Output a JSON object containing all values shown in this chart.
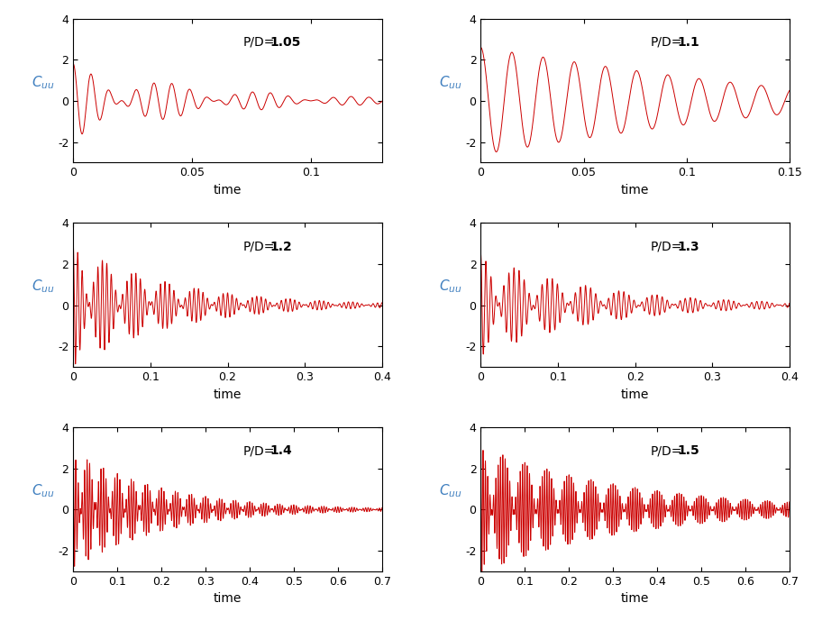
{
  "subplots": [
    {
      "label": "P/D=1.05",
      "xlim": [
        0,
        0.13
      ],
      "xticks": [
        0,
        0.05,
        0.1
      ],
      "xticklabels": [
        "0",
        "0.05",
        "0.1"
      ],
      "freq1": 120,
      "freq2": 145,
      "decay": 18,
      "amp": 1.8
    },
    {
      "label": "P/D=1.1",
      "xlim": [
        0,
        0.15
      ],
      "xticks": [
        0,
        0.05,
        0.1,
        0.15
      ],
      "xticklabels": [
        "0",
        "0.05",
        "0.1",
        "0.15"
      ],
      "freq1": 65,
      "freq2": 67,
      "decay": 6,
      "amp": 2.6
    },
    {
      "label": "P/D=1.2",
      "xlim": [
        0,
        0.4
      ],
      "xticks": [
        0,
        0.1,
        0.2,
        0.3,
        0.4
      ],
      "xticklabels": [
        "0",
        "0.1",
        "0.2",
        "0.3",
        "0.4"
      ],
      "freq1": 160,
      "freq2": 185,
      "decay": 8,
      "amp": 3.0
    },
    {
      "label": "P/D=1.3",
      "xlim": [
        0,
        0.4
      ],
      "xticks": [
        0,
        0.1,
        0.2,
        0.3,
        0.4
      ],
      "xticklabels": [
        "0",
        "0.1",
        "0.2",
        "0.3",
        "0.4"
      ],
      "freq1": 140,
      "freq2": 162,
      "decay": 7,
      "amp": 2.5
    },
    {
      "label": "P/D=1.4",
      "xlim": [
        0,
        0.7
      ],
      "xticks": [
        0,
        0.1,
        0.2,
        0.3,
        0.4,
        0.5,
        0.6,
        0.7
      ],
      "xticklabels": [
        "0",
        "0.1",
        "0.2",
        "0.3",
        "0.4",
        "0.5",
        "0.6",
        "0.7"
      ],
      "freq1": 160,
      "freq2": 190,
      "decay": 5,
      "amp": 2.9
    },
    {
      "label": "P/D=1.5",
      "xlim": [
        0,
        0.7
      ],
      "xticks": [
        0,
        0.1,
        0.2,
        0.3,
        0.4,
        0.5,
        0.6,
        0.7
      ],
      "xticklabels": [
        "0",
        "0.1",
        "0.2",
        "0.3",
        "0.4",
        "0.5",
        "0.6",
        "0.7"
      ],
      "freq1": 180,
      "freq2": 200,
      "decay": 3,
      "amp": 3.1
    }
  ],
  "ylim": [
    -3,
    4
  ],
  "yticks": [
    -2,
    0,
    2,
    4
  ],
  "ylabel": "C_uu",
  "xlabel": "time",
  "line_color": "#CC0000",
  "label_color": "#3F7FBF",
  "background_color": "#FFFFFF"
}
